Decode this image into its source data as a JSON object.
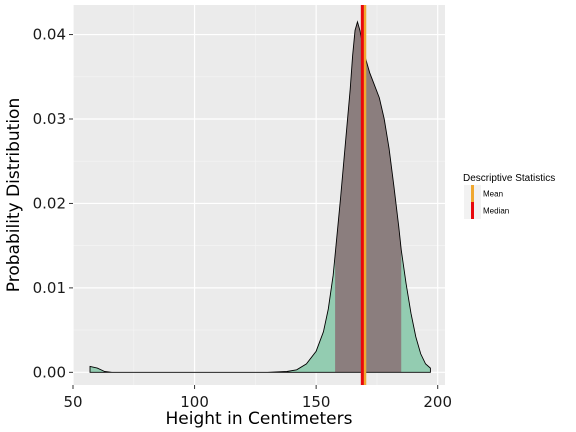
{
  "chart_data": {
    "type": "area",
    "xlabel": "Height in Centimeters",
    "ylabel": "Probability Distribution",
    "xlim": [
      50,
      203
    ],
    "ylim": [
      -0.0015,
      0.0435
    ],
    "x_ticks": [
      50,
      100,
      150,
      200
    ],
    "x_tick_labels": [
      "50",
      "100",
      "150",
      "200"
    ],
    "y_ticks": [
      0.0,
      0.01,
      0.02,
      0.03,
      0.04
    ],
    "y_tick_labels": [
      "0.00",
      "0.01",
      "0.02",
      "0.03",
      "0.04"
    ],
    "grid": true,
    "density": {
      "x": [
        57,
        60,
        63,
        66,
        70,
        80,
        90,
        100,
        110,
        120,
        130,
        138,
        142,
        146,
        150,
        153,
        155,
        157,
        158,
        160,
        162,
        164,
        165,
        166,
        167,
        168,
        169,
        170,
        171,
        172,
        174,
        176,
        178,
        180,
        182,
        184,
        185,
        187,
        189,
        191,
        193,
        195,
        197
      ],
      "y": [
        0.0007,
        0.0005,
        0.0001,
        0.0,
        0.0,
        0.0,
        0.0,
        0.0,
        0.0,
        0.0,
        0.0,
        0.0001,
        0.0003,
        0.001,
        0.0025,
        0.0048,
        0.0075,
        0.0115,
        0.0145,
        0.0205,
        0.027,
        0.0335,
        0.0375,
        0.0405,
        0.0415,
        0.0405,
        0.039,
        0.0375,
        0.0365,
        0.0355,
        0.034,
        0.0325,
        0.03,
        0.0265,
        0.022,
        0.0172,
        0.0145,
        0.0105,
        0.007,
        0.0042,
        0.0022,
        0.001,
        0.0005
      ]
    },
    "shaded_interval": [
      157.8,
      185
    ],
    "fill_color": "#93ccb1",
    "shaded_color": "#8b7e7e",
    "legend": {
      "title": "Descriptive Statistics",
      "position": "right",
      "items": [
        {
          "label": "Mean",
          "color": "#f0a830",
          "value": 170
        },
        {
          "label": "Median",
          "color": "#e8080c",
          "value": 169
        }
      ]
    }
  }
}
